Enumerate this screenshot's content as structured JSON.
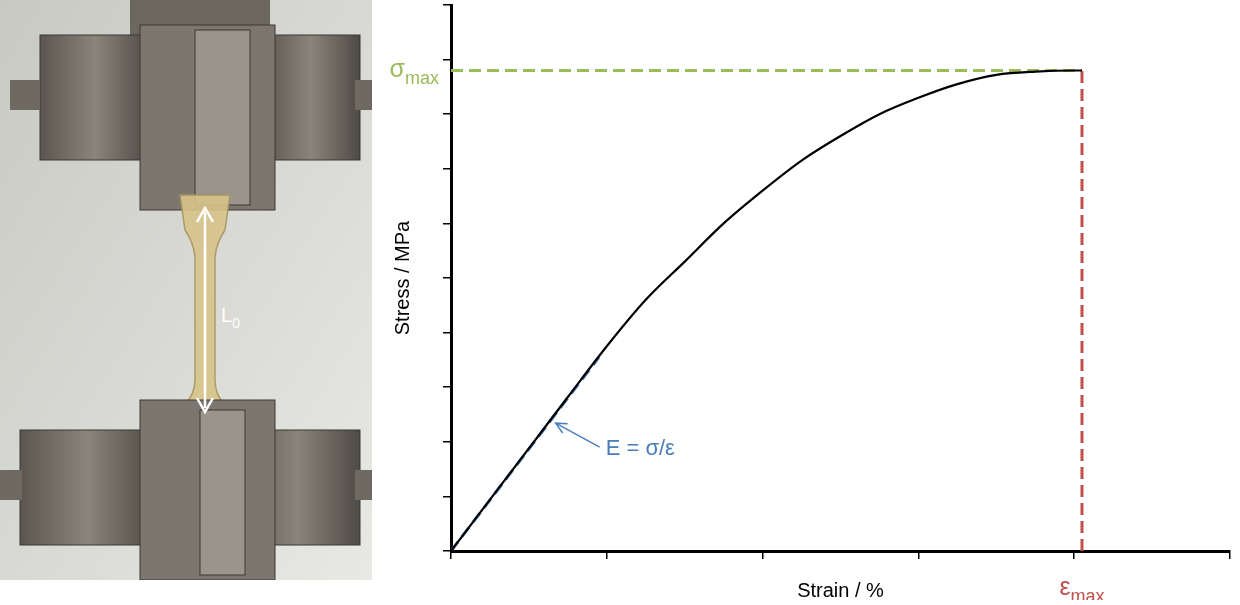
{
  "chart_data": {
    "type": "line",
    "x_label": "Strain / %",
    "y_label": "Stress / MPa",
    "x": [
      0,
      5,
      10,
      15,
      20,
      25,
      30,
      35,
      40,
      45,
      50,
      55,
      60,
      65,
      70,
      75,
      80,
      81
    ],
    "values": [
      0,
      9.4,
      18.8,
      28.2,
      37.5,
      46,
      53,
      60,
      66,
      71.5,
      76,
      80,
      83,
      85.5,
      87.2,
      87.8,
      88,
      88
    ],
    "color": "#000000",
    "xlim": [
      0,
      100
    ],
    "xticks": [
      0,
      20,
      40,
      60,
      80,
      100
    ],
    "ylim": [
      0,
      100
    ],
    "yticks": [
      0,
      10,
      20,
      30,
      40,
      50,
      60,
      70,
      80,
      90,
      100
    ],
    "grid": false,
    "tick_labels": false,
    "annotations": [
      {
        "text": "E = σ/ε",
        "color": "#4a7ebb",
        "line_style": "dashed",
        "x": [
          0,
          19
        ],
        "y": [
          0,
          35.5
        ]
      },
      {
        "label": {
          "base": "σ",
          "sub": "max"
        },
        "color": "#9bbb59",
        "line_style": "dashed",
        "y": 88
      },
      {
        "label": {
          "base": "ε",
          "sub": "max"
        },
        "color": "#c0504d",
        "line_style": "dashed",
        "x": 81
      }
    ]
  },
  "photo": {
    "label": {
      "base": "L",
      "sub": "0"
    }
  }
}
